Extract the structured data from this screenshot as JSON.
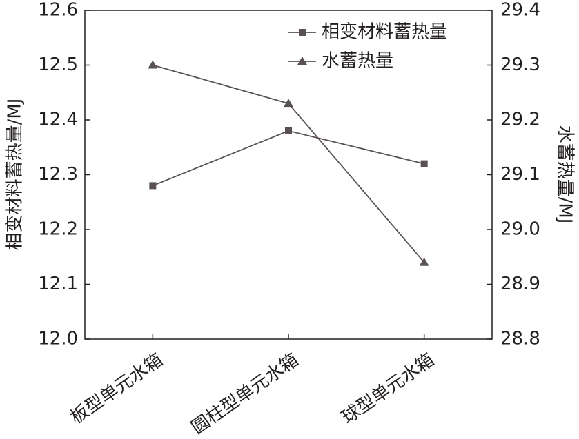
{
  "chart_data": {
    "type": "line",
    "categories": [
      "板型单元水箱",
      "圆柱型单元水箱",
      "球型单元水箱"
    ],
    "series": [
      {
        "name": "相变材料蓄热量",
        "color": "#5a5252",
        "marker": "square",
        "values": [
          12.28,
          12.38,
          12.32
        ]
      },
      {
        "name": "水蓄热量",
        "color": "#5a5252",
        "marker": "triangle",
        "axis": "y2",
        "values": [
          29.3,
          29.23,
          28.94
        ]
      }
    ],
    "ylabel": "相变材料蓄热量/MJ",
    "y2label": "水蓄热量/MJ",
    "ylim": [
      12.0,
      12.6
    ],
    "yticks": [
      {
        "value": 12.0,
        "label": "12.0"
      },
      12.1,
      12.2,
      12.3,
      12.4,
      12.5,
      12.6
    ],
    "y2lim": [
      28.8,
      29.4
    ],
    "y2ticks": [
      28.8,
      28.9,
      {
        "value": 29.0,
        "label": "29.0"
      },
      29.1,
      29.2,
      29.3,
      29.4
    ],
    "grid": false,
    "legend": "upper right"
  }
}
